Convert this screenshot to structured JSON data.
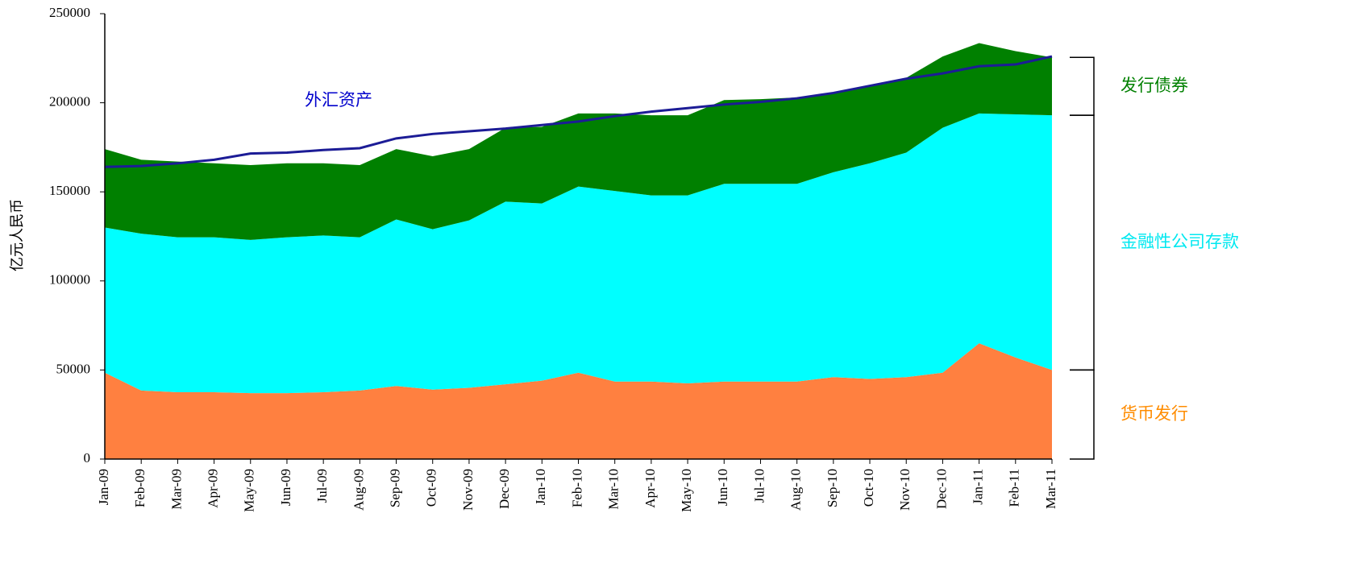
{
  "chart_data": {
    "type": "stacked_area",
    "y_label": "亿元人民币",
    "categories": [
      "Jan-09",
      "Feb-09",
      "Mar-09",
      "Apr-09",
      "May-09",
      "Jun-09",
      "Jul-09",
      "Aug-09",
      "Sep-09",
      "Oct-09",
      "Nov-09",
      "Dec-09",
      "Jan-10",
      "Feb-10",
      "Mar-10",
      "Apr-10",
      "May-10",
      "Jun-10",
      "Jul-10",
      "Aug-10",
      "Sep-10",
      "Oct-10",
      "Nov-10",
      "Dec-10",
      "Jan-11",
      "Feb-11",
      "Mar-11"
    ],
    "series": [
      {
        "name": "货币发行",
        "color": "#ff8040",
        "label_color": "#ff8c00",
        "values": [
          48500,
          38500,
          37500,
          37500,
          37000,
          37000,
          37500,
          38500,
          41000,
          39000,
          40000,
          42000,
          44000,
          48500,
          43500,
          43500,
          42500,
          43500,
          43500,
          43500,
          46000,
          45000,
          46000,
          48500,
          65000,
          57000,
          50000
        ]
      },
      {
        "name": "金融性公司存款",
        "color": "#00ffff",
        "label_color": "#00e8f0",
        "values": [
          81500,
          88000,
          87000,
          87000,
          86000,
          87500,
          88000,
          86000,
          93500,
          90000,
          94000,
          102500,
          99500,
          104500,
          107000,
          104500,
          105500,
          111000,
          111000,
          111000,
          115000,
          121000,
          126000,
          137500,
          129000,
          136500,
          143000
        ]
      },
      {
        "name": "发行债券",
        "color": "#008000",
        "label_color": "#008000",
        "values": [
          44000,
          41500,
          42500,
          41500,
          42000,
          41500,
          40500,
          40500,
          39500,
          41000,
          40000,
          41500,
          43000,
          41000,
          43500,
          45000,
          45000,
          47000,
          47500,
          48500,
          45000,
          44000,
          42000,
          40000,
          39500,
          35500,
          32500
        ]
      },
      {
        "name": "外汇资产",
        "type": "line",
        "color": "#1c1c96",
        "label_color": "#0000cc",
        "values": [
          164000,
          164500,
          166000,
          168000,
          171500,
          172000,
          173500,
          174500,
          180000,
          182500,
          184000,
          185500,
          187500,
          189500,
          192500,
          195000,
          197000,
          199000,
          200500,
          202500,
          205500,
          209500,
          213500,
          216500,
          220500,
          221500,
          226000
        ]
      }
    ],
    "ylim": [
      0,
      250000
    ],
    "yticks": [
      0,
      50000,
      100000,
      150000,
      200000,
      250000
    ],
    "grid": false
  }
}
